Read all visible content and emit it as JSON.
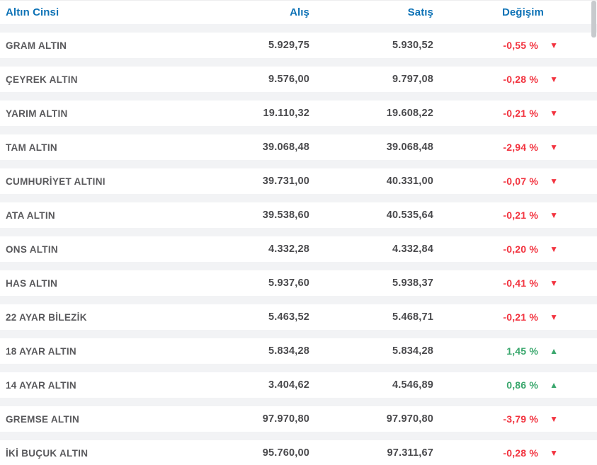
{
  "table": {
    "columns": [
      "Altın Cinsi",
      "Alış",
      "Satış",
      "Değişim"
    ],
    "rows": [
      {
        "name": "GRAM ALTIN",
        "buy": "5.929,75",
        "sell": "5.930,52",
        "change": "-0,55 %",
        "dir": "down"
      },
      {
        "name": "ÇEYREK ALTIN",
        "buy": "9.576,00",
        "sell": "9.797,08",
        "change": "-0,28 %",
        "dir": "down"
      },
      {
        "name": "YARIM ALTIN",
        "buy": "19.110,32",
        "sell": "19.608,22",
        "change": "-0,21 %",
        "dir": "down"
      },
      {
        "name": "TAM ALTIN",
        "buy": "39.068,48",
        "sell": "39.068,48",
        "change": "-2,94 %",
        "dir": "down"
      },
      {
        "name": "CUMHURİYET ALTINI",
        "buy": "39.731,00",
        "sell": "40.331,00",
        "change": "-0,07 %",
        "dir": "down"
      },
      {
        "name": "ATA ALTIN",
        "buy": "39.538,60",
        "sell": "40.535,64",
        "change": "-0,21 %",
        "dir": "down"
      },
      {
        "name": "ONS ALTIN",
        "buy": "4.332,28",
        "sell": "4.332,84",
        "change": "-0,20 %",
        "dir": "down"
      },
      {
        "name": "HAS ALTIN",
        "buy": "5.937,60",
        "sell": "5.938,37",
        "change": "-0,41 %",
        "dir": "down"
      },
      {
        "name": "22 AYAR BİLEZİK",
        "buy": "5.463,52",
        "sell": "5.468,71",
        "change": "-0,21 %",
        "dir": "down"
      },
      {
        "name": "18 AYAR ALTIN",
        "buy": "5.834,28",
        "sell": "5.834,28",
        "change": "1,45 %",
        "dir": "up"
      },
      {
        "name": "14 AYAR ALTIN",
        "buy": "3.404,62",
        "sell": "4.546,89",
        "change": "0,86 %",
        "dir": "up"
      },
      {
        "name": "GREMSE ALTIN",
        "buy": "97.970,80",
        "sell": "97.970,80",
        "change": "-3,79 %",
        "dir": "down"
      },
      {
        "name": "İKİ BUÇUK ALTIN",
        "buy": "95.760,00",
        "sell": "97.311,67",
        "change": "-0,28 %",
        "dir": "down"
      }
    ],
    "icons": {
      "down": "▼",
      "up": "▲"
    },
    "colors": {
      "header_blue": "#0d72b6",
      "down_red": "#f2333f",
      "up_green": "#3aa76d",
      "row_gap_gray": "#f2f3f5"
    }
  }
}
